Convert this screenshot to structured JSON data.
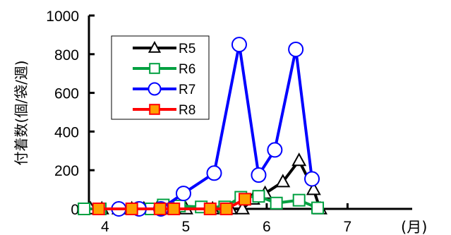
{
  "chart_data": {
    "type": "line",
    "ylabel": "付着数(個/袋/週)",
    "x_unit_label": "(月)",
    "ylim": [
      0,
      1000
    ],
    "xlim": [
      3.8,
      7.8
    ],
    "y_ticks": [
      0,
      200,
      400,
      600,
      800,
      1000
    ],
    "x_ticks": [
      4,
      5,
      6,
      7
    ],
    "legend_position": "upper-left",
    "series": [
      {
        "name": "R5",
        "color": "#000000",
        "fill": "#ffffff",
        "marker": "triangle",
        "x": [
          3.82,
          3.96,
          4.17,
          4.33,
          4.48,
          4.64,
          4.8,
          5.0,
          5.33,
          5.55,
          5.7,
          5.83,
          5.98,
          6.2,
          6.4,
          6.58,
          6.66
        ],
        "y": [
          0,
          0,
          0,
          0,
          0,
          0,
          0,
          0,
          0,
          0,
          0,
          50,
          80,
          140,
          250,
          100,
          0
        ]
      },
      {
        "name": "R6",
        "color": "#00a040",
        "fill": "#ffffff",
        "marker": "square",
        "x": [
          3.74,
          3.94,
          4.35,
          4.57,
          4.72,
          4.92,
          5.19,
          5.48,
          5.68,
          5.9,
          6.12,
          6.4,
          6.63
        ],
        "y": [
          0,
          0,
          0,
          0,
          20,
          15,
          10,
          10,
          60,
          65,
          30,
          45,
          5
        ]
      },
      {
        "name": "R7",
        "color": "#0000ff",
        "fill": "#ffffff",
        "marker": "circle",
        "x": [
          4.17,
          4.42,
          4.69,
          4.97,
          5.35,
          5.66,
          5.9,
          6.1,
          6.36,
          6.56
        ],
        "y": [
          0,
          0,
          0,
          80,
          185,
          850,
          175,
          305,
          825,
          155
        ]
      },
      {
        "name": "R8",
        "color": "#ff0000",
        "fill": "#ffa000",
        "marker": "square",
        "x": [
          3.92,
          4.33,
          4.68,
          4.85,
          5.3,
          5.5,
          5.73
        ],
        "y": [
          0,
          0,
          0,
          0,
          0,
          0,
          50
        ]
      }
    ]
  }
}
